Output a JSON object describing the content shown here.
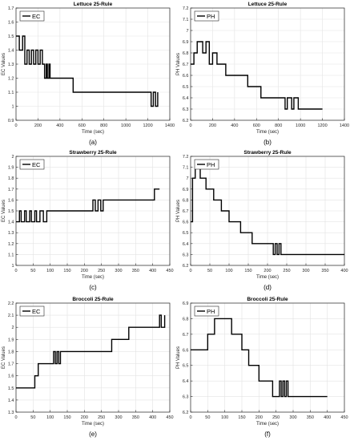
{
  "chart_data": [
    {
      "type": "line",
      "caption": "(a)",
      "title": "Lettuce 25-Rule",
      "xlabel": "Time (sec)",
      "ylabel": "EC Values",
      "xlim": [
        0,
        1400
      ],
      "ylim": [
        0.9,
        1.7
      ],
      "xticks": [
        0,
        200,
        400,
        600,
        800,
        1000,
        1200,
        1400
      ],
      "yticks": [
        0.9,
        1,
        1.1,
        1.2,
        1.3,
        1.4,
        1.5,
        1.6,
        1.7
      ],
      "grid": true,
      "legend": "top-left",
      "series": [
        {
          "name": "EC",
          "color": "#000000",
          "step": true,
          "x": [
            0,
            30,
            60,
            80,
            100,
            120,
            140,
            160,
            180,
            200,
            220,
            240,
            260,
            275,
            285,
            300,
            310,
            520,
            1230,
            1250,
            1270,
            1290
          ],
          "y": [
            1.5,
            1.4,
            1.5,
            1.3,
            1.4,
            1.3,
            1.4,
            1.3,
            1.4,
            1.3,
            1.4,
            1.3,
            1.2,
            1.3,
            1.2,
            1.3,
            1.2,
            1.1,
            1.0,
            1.1,
            1.0,
            1.1
          ]
        }
      ]
    },
    {
      "type": "line",
      "caption": "(b)",
      "title": "Lettuce 25-Rule",
      "xlabel": "Time (sec)",
      "ylabel": "PH Values",
      "xlim": [
        0,
        1400
      ],
      "ylim": [
        6.2,
        7.2
      ],
      "xticks": [
        0,
        200,
        400,
        600,
        800,
        1000,
        1200,
        1400
      ],
      "yticks": [
        6.2,
        6.3,
        6.4,
        6.5,
        6.6,
        6.7,
        6.8,
        6.9,
        7,
        7.1,
        7.2
      ],
      "grid": true,
      "legend": "top-left",
      "series": [
        {
          "name": "PH",
          "color": "#000000",
          "step": true,
          "x": [
            0,
            30,
            60,
            110,
            140,
            170,
            200,
            240,
            250,
            320,
            420,
            520,
            640,
            860,
            880,
            920,
            940,
            980,
            1200
          ],
          "y": [
            6.7,
            6.8,
            6.9,
            6.8,
            6.9,
            6.7,
            6.8,
            6.7,
            6.7,
            6.6,
            6.6,
            6.5,
            6.4,
            6.3,
            6.4,
            6.3,
            6.4,
            6.3,
            6.3
          ]
        }
      ]
    },
    {
      "type": "line",
      "caption": "(c)",
      "title": "Strawberry 25-Rule",
      "xlabel": "Time (sec)",
      "ylabel": "EC Values",
      "xlim": [
        0,
        450
      ],
      "ylim": [
        1,
        2
      ],
      "xticks": [
        0,
        50,
        100,
        150,
        200,
        250,
        300,
        350,
        400,
        450
      ],
      "yticks": [
        1,
        1.1,
        1.2,
        1.3,
        1.4,
        1.5,
        1.6,
        1.7,
        1.8,
        1.9,
        2
      ],
      "grid": true,
      "legend": "top-left",
      "series": [
        {
          "name": "EC",
          "color": "#000000",
          "step": true,
          "x": [
            0,
            10,
            15,
            25,
            30,
            40,
            45,
            55,
            60,
            70,
            80,
            90,
            225,
            232,
            240,
            248,
            255,
            405,
            420
          ],
          "y": [
            1.4,
            1.5,
            1.4,
            1.5,
            1.4,
            1.5,
            1.4,
            1.5,
            1.4,
            1.5,
            1.4,
            1.5,
            1.6,
            1.5,
            1.6,
            1.5,
            1.6,
            1.7,
            1.7
          ]
        }
      ]
    },
    {
      "type": "line",
      "caption": "(d)",
      "title": "Strawberry 25-Rule",
      "xlabel": "Time (sec)",
      "ylabel": "PH Values",
      "xlim": [
        0,
        400
      ],
      "ylim": [
        6.2,
        7.2
      ],
      "xticks": [
        0,
        50,
        100,
        150,
        200,
        250,
        300,
        350,
        400
      ],
      "yticks": [
        6.2,
        6.3,
        6.4,
        6.5,
        6.6,
        6.7,
        6.8,
        6.9,
        7,
        7.1,
        7.2
      ],
      "grid": true,
      "legend": "top-left",
      "series": [
        {
          "name": "PH",
          "color": "#000000",
          "step": true,
          "x": [
            0,
            5,
            12,
            25,
            40,
            60,
            80,
            100,
            130,
            160,
            215,
            220,
            225,
            230,
            235,
            400
          ],
          "y": [
            6.6,
            7.0,
            7.1,
            7.0,
            6.9,
            6.8,
            6.7,
            6.6,
            6.5,
            6.4,
            6.3,
            6.4,
            6.3,
            6.4,
            6.3,
            6.3
          ]
        }
      ]
    },
    {
      "type": "line",
      "caption": "(e)",
      "title": "Broccoli 25-Rule",
      "xlabel": "Time (sec)",
      "ylabel": "EC Values",
      "xlim": [
        0,
        450
      ],
      "ylim": [
        1.3,
        2.2
      ],
      "xticks": [
        0,
        50,
        100,
        150,
        200,
        250,
        300,
        350,
        400,
        450
      ],
      "yticks": [
        1.3,
        1.4,
        1.5,
        1.6,
        1.7,
        1.8,
        1.9,
        2,
        2.1,
        2.2
      ],
      "grid": true,
      "legend": "top-left",
      "series": [
        {
          "name": "EC",
          "color": "#000000",
          "step": true,
          "x": [
            0,
            55,
            65,
            110,
            115,
            120,
            125,
            130,
            280,
            330,
            420,
            425,
            435
          ],
          "y": [
            1.5,
            1.6,
            1.7,
            1.8,
            1.7,
            1.8,
            1.7,
            1.8,
            1.9,
            2.0,
            2.1,
            2.0,
            2.1
          ]
        }
      ]
    },
    {
      "type": "line",
      "caption": "(f)",
      "title": "Broccoli 25-Rule",
      "xlabel": "Time (sec)",
      "ylabel": "PH Values",
      "xlim": [
        0,
        450
      ],
      "ylim": [
        6.2,
        6.9
      ],
      "xticks": [
        0,
        50,
        100,
        150,
        200,
        250,
        300,
        350,
        400,
        450
      ],
      "yticks": [
        6.2,
        6.3,
        6.4,
        6.5,
        6.6,
        6.7,
        6.8,
        6.9
      ],
      "grid": true,
      "legend": "top-left",
      "series": [
        {
          "name": "PH",
          "color": "#000000",
          "step": true,
          "x": [
            0,
            50,
            70,
            120,
            150,
            170,
            200,
            240,
            260,
            265,
            270,
            275,
            280,
            285,
            400
          ],
          "y": [
            6.6,
            6.7,
            6.8,
            6.7,
            6.6,
            6.5,
            6.4,
            6.3,
            6.4,
            6.3,
            6.4,
            6.3,
            6.4,
            6.3,
            6.3
          ]
        }
      ]
    }
  ]
}
